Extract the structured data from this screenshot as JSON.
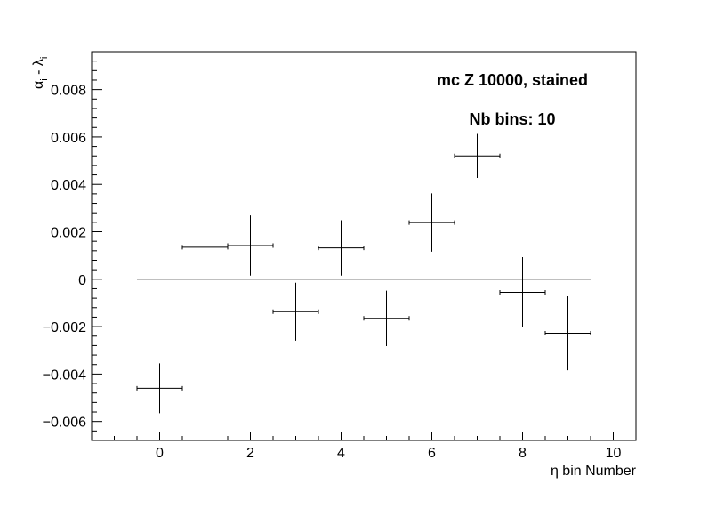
{
  "chart_data": {
    "type": "scatter",
    "title": "",
    "xlabel": "η bin Number",
    "ylabel_main": "α",
    "ylabel_sub1": "i",
    "ylabel_mid": " - λ",
    "ylabel_sub2": "i",
    "xlim": [
      -1.5,
      10.5
    ],
    "ylim": [
      -0.0068,
      0.0096
    ],
    "x_ticks": [
      0,
      2,
      4,
      6,
      8,
      10
    ],
    "x_tick_labels": [
      "0",
      "2",
      "4",
      "6",
      "8",
      "10"
    ],
    "y_ticks": [
      -0.006,
      -0.004,
      -0.002,
      0,
      0.002,
      0.004,
      0.006,
      0.008
    ],
    "y_tick_labels": [
      "−0.006",
      "−0.004",
      "−0.002",
      "0",
      "0.002",
      "0.004",
      "0.006",
      "0.008"
    ],
    "grid": false,
    "legend": "none",
    "reference_line": {
      "y": 0,
      "x_from": -0.5,
      "x_to": 9.5
    },
    "annotations": [
      "mc Z 10000, stained",
      "Nb bins: 10"
    ],
    "points": [
      {
        "x": 0,
        "y": -0.0046,
        "xerr": 0.5,
        "yerr": 0.00105
      },
      {
        "x": 1,
        "y": 0.00135,
        "xerr": 0.5,
        "yerr": 0.00138
      },
      {
        "x": 2,
        "y": 0.00142,
        "xerr": 0.5,
        "yerr": 0.00127
      },
      {
        "x": 3,
        "y": -0.00137,
        "xerr": 0.5,
        "yerr": 0.00122
      },
      {
        "x": 4,
        "y": 0.00132,
        "xerr": 0.5,
        "yerr": 0.00117
      },
      {
        "x": 5,
        "y": -0.00165,
        "xerr": 0.5,
        "yerr": 0.00117
      },
      {
        "x": 6,
        "y": 0.00239,
        "xerr": 0.5,
        "yerr": 0.00123
      },
      {
        "x": 7,
        "y": 0.0052,
        "xerr": 0.5,
        "yerr": 0.00093
      },
      {
        "x": 8,
        "y": -0.00055,
        "xerr": 0.5,
        "yerr": 0.00148
      },
      {
        "x": 9,
        "y": -0.00228,
        "xerr": 0.5,
        "yerr": 0.00156
      }
    ]
  }
}
